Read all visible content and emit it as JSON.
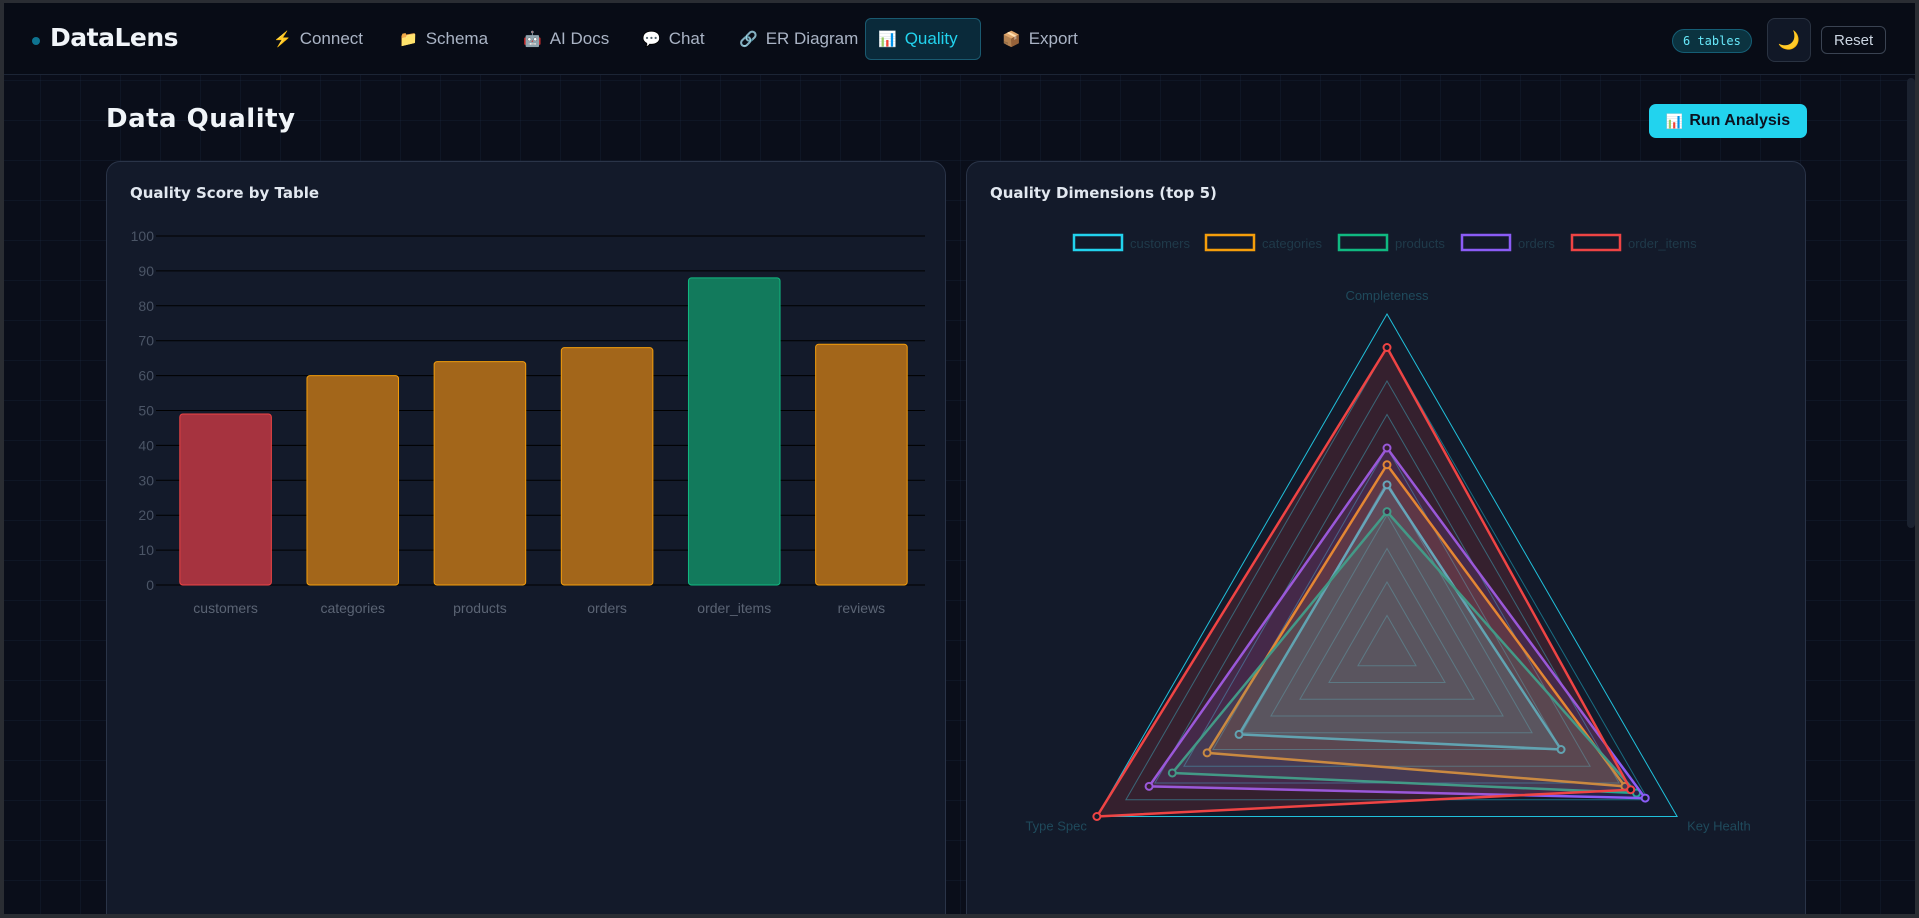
{
  "app": {
    "title": "DataLens",
    "tables_badge": "6 tables",
    "theme_icon": "🌙",
    "reset_label": "Reset"
  },
  "nav": [
    {
      "id": "connect",
      "icon": "⚡",
      "label": "Connect",
      "active": false
    },
    {
      "id": "schema",
      "icon": "📁",
      "label": "Schema",
      "active": false
    },
    {
      "id": "ai-docs",
      "icon": "🤖",
      "label": "AI Docs",
      "active": false
    },
    {
      "id": "chat",
      "icon": "💬",
      "label": "Chat",
      "active": false
    },
    {
      "id": "er-diagram",
      "icon": "🔗",
      "label": "ER Diagram",
      "active": false
    },
    {
      "id": "quality",
      "icon": "📊",
      "label": "Quality",
      "active": true
    },
    {
      "id": "export",
      "icon": "📦",
      "label": "Export",
      "active": false
    }
  ],
  "page": {
    "title": "Data Quality",
    "run_icon": "📊",
    "run_label": "Run Analysis"
  },
  "bar_card": {
    "title": "Quality Score by Table"
  },
  "radar_card": {
    "title": "Quality Dimensions (top 5)"
  },
  "colors": {
    "accent": "#22d3ee",
    "bad": "#b91c1c",
    "warn": "#b45309",
    "good": "#059669"
  },
  "chart_data": [
    {
      "type": "bar",
      "title": "Quality Score by Table",
      "categories": [
        "customers",
        "categories",
        "products",
        "orders",
        "order_items",
        "reviews"
      ],
      "values": [
        49,
        60,
        64,
        68,
        88,
        69
      ],
      "bar_colors": [
        "#a6333f",
        "#a3661a",
        "#a3661a",
        "#a3661a",
        "#127a5c",
        "#a3661a"
      ],
      "bar_borders": [
        "#ef4444",
        "#f59e0b",
        "#f59e0b",
        "#f59e0b",
        "#10b981",
        "#f59e0b"
      ],
      "ylim": [
        0,
        100
      ],
      "yticks": [
        0,
        10,
        20,
        30,
        40,
        50,
        60,
        70,
        80,
        90,
        100
      ],
      "grid": true
    },
    {
      "type": "radar",
      "title": "Quality Dimensions (top 5)",
      "axes": [
        "Completeness",
        "Key Health",
        "Type Spec"
      ],
      "rmax": 100,
      "rings": 10,
      "legend_position": "top",
      "series": [
        {
          "name": "customers",
          "color": "#22d3ee",
          "values": [
            49,
            60,
            51
          ]
        },
        {
          "name": "categories",
          "color": "#f59e0b",
          "values": [
            55,
            82,
            62
          ]
        },
        {
          "name": "products",
          "color": "#10b981",
          "values": [
            41,
            86,
            74
          ]
        },
        {
          "name": "orders",
          "color": "#8b5cf6",
          "values": [
            60,
            89,
            82
          ]
        },
        {
          "name": "order_items",
          "color": "#ef4444",
          "values": [
            90,
            84,
            100
          ]
        }
      ]
    }
  ]
}
